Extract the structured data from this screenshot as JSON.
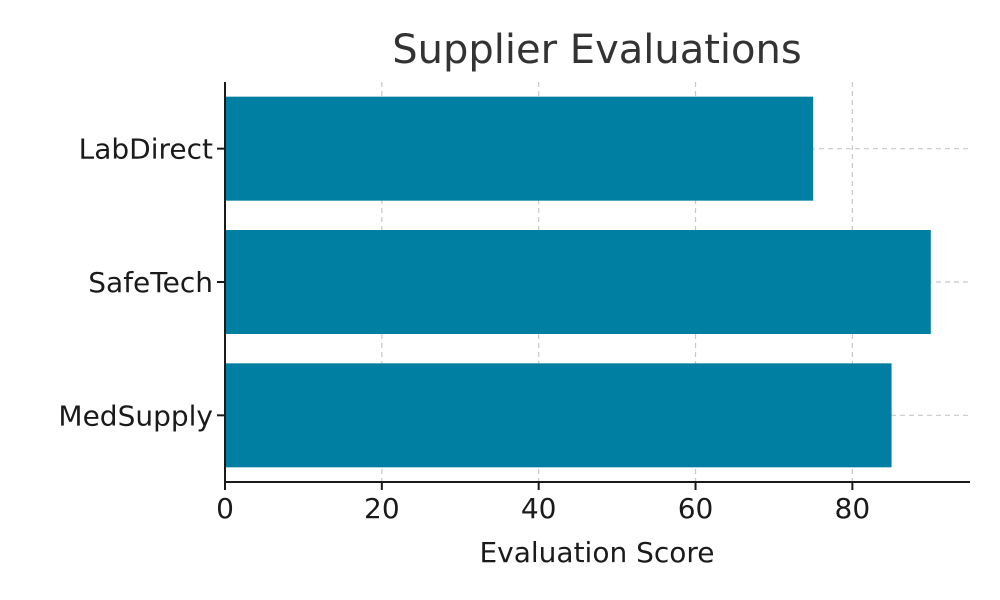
{
  "chart_data": {
    "type": "bar",
    "orientation": "horizontal",
    "title": "Supplier Evaluations",
    "xlabel": "Evaluation Score",
    "ylabel": "",
    "categories": [
      "MedSupply",
      "SafeTech",
      "LabDirect"
    ],
    "values": [
      85,
      90,
      75
    ],
    "xlim": [
      0,
      95
    ],
    "xticks": [
      0,
      20,
      40,
      60,
      80
    ],
    "grid": true,
    "bar_color": "#007fa3"
  }
}
